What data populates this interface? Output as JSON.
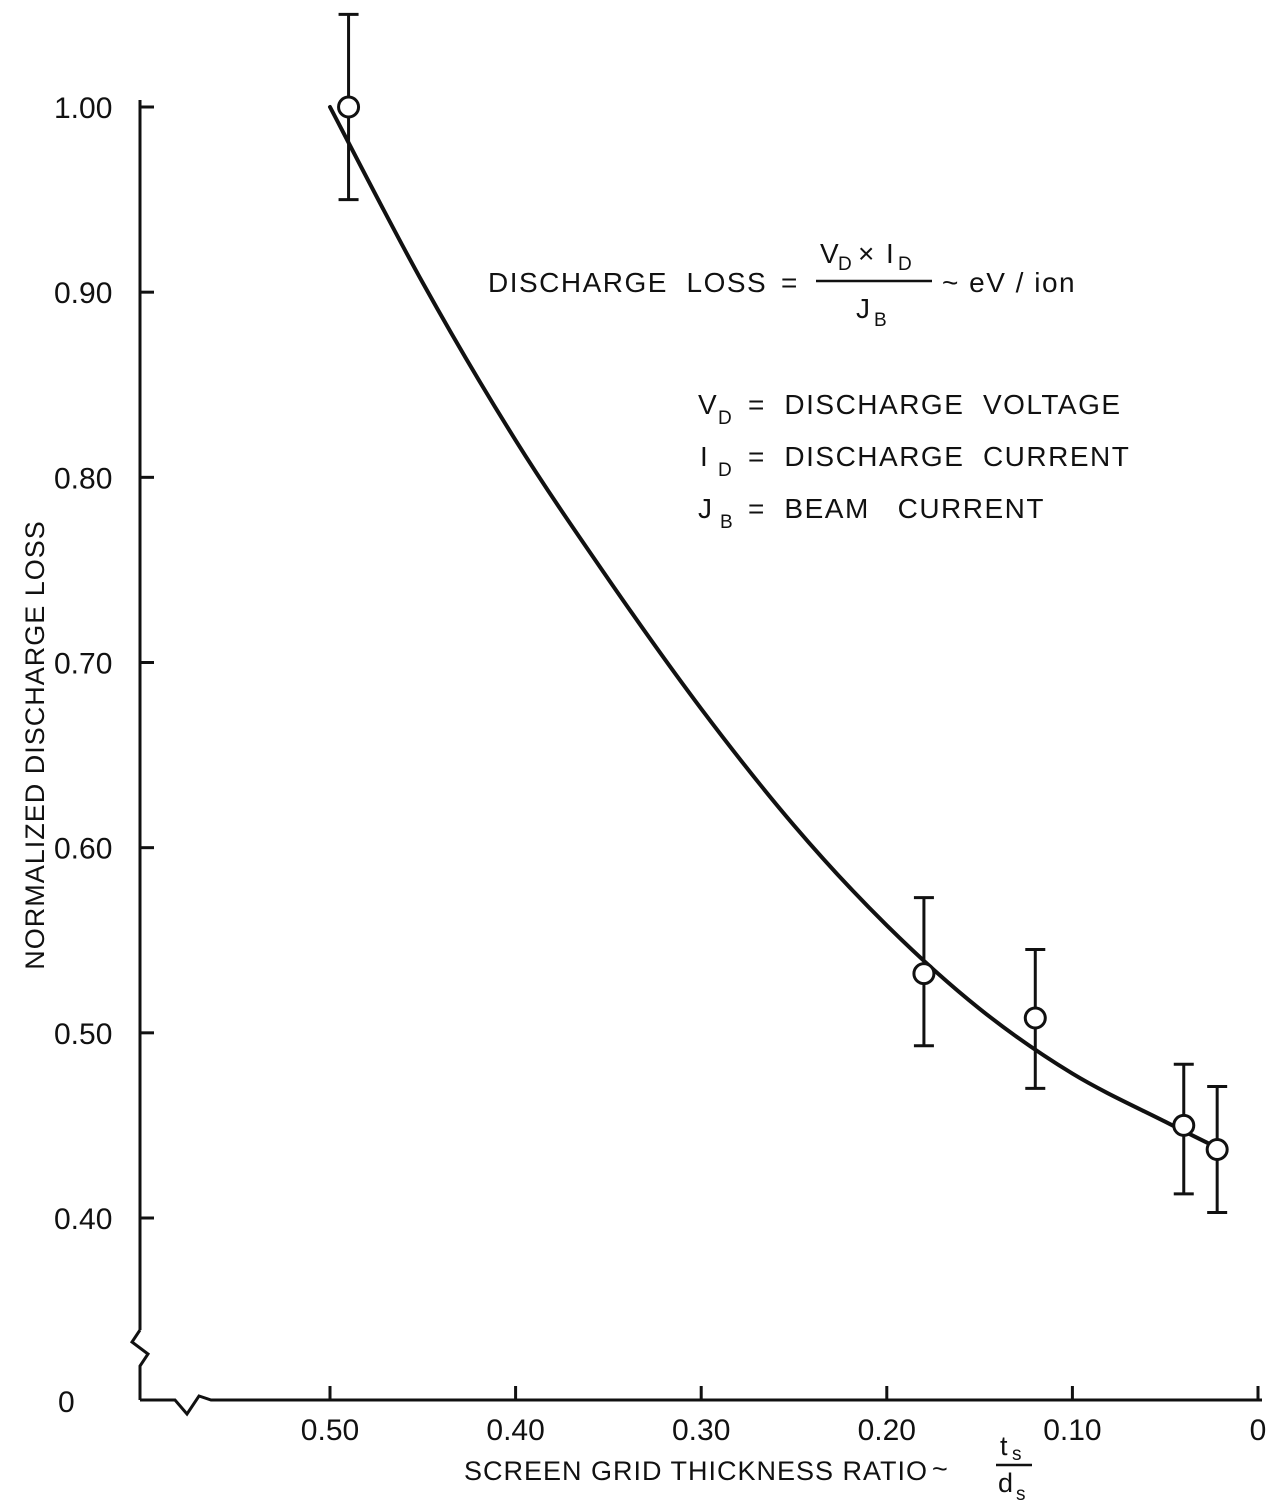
{
  "chart_data": {
    "type": "scatter",
    "title": "",
    "xlabel": "SCREEN GRID THICKNESS RATIO",
    "xlabel_fraction": {
      "sep": "~",
      "num": "t",
      "num_sub": "s",
      "den": "d",
      "den_sub": "s"
    },
    "ylabel": "NORMALIZED DISCHARGE LOSS",
    "xlim": [
      0.5,
      0
    ],
    "ylim": [
      0.4,
      1.0
    ],
    "x_reversed": true,
    "y_axis_break": true,
    "x_axis_break": true,
    "x_origin_label": "0",
    "y_origin_label": "0",
    "x_ticks": [
      {
        "value": 0.5,
        "label": "0.50"
      },
      {
        "value": 0.4,
        "label": "0.40"
      },
      {
        "value": 0.3,
        "label": "0.30"
      },
      {
        "value": 0.2,
        "label": "0.20"
      },
      {
        "value": 0.1,
        "label": "0.10"
      },
      {
        "value": 0.0,
        "label": "0"
      }
    ],
    "y_ticks": [
      {
        "value": 1.0,
        "label": "1.00"
      },
      {
        "value": 0.9,
        "label": "0.90"
      },
      {
        "value": 0.8,
        "label": "0.80"
      },
      {
        "value": 0.7,
        "label": "0.70"
      },
      {
        "value": 0.6,
        "label": "0.60"
      },
      {
        "value": 0.5,
        "label": "0.50"
      },
      {
        "value": 0.4,
        "label": "0.40"
      }
    ],
    "grid": false,
    "series": [
      {
        "marker": "open-circle",
        "points": [
          {
            "x": 0.49,
            "y": 1.0,
            "err_low": 0.95,
            "err_high": 1.05
          },
          {
            "x": 0.18,
            "y": 0.532,
            "err_low": 0.493,
            "err_high": 0.573
          },
          {
            "x": 0.12,
            "y": 0.508,
            "err_low": 0.47,
            "err_high": 0.545
          },
          {
            "x": 0.04,
            "y": 0.45,
            "err_low": 0.413,
            "err_high": 0.483
          },
          {
            "x": 0.022,
            "y": 0.437,
            "err_low": 0.403,
            "err_high": 0.471
          }
        ]
      }
    ],
    "fit_curve": [
      {
        "x": 0.5,
        "y": 1.0
      },
      {
        "x": 0.45,
        "y": 0.905
      },
      {
        "x": 0.4,
        "y": 0.82
      },
      {
        "x": 0.35,
        "y": 0.745
      },
      {
        "x": 0.3,
        "y": 0.675
      },
      {
        "x": 0.25,
        "y": 0.612
      },
      {
        "x": 0.2,
        "y": 0.558
      },
      {
        "x": 0.15,
        "y": 0.513
      },
      {
        "x": 0.1,
        "y": 0.478
      },
      {
        "x": 0.05,
        "y": 0.452
      },
      {
        "x": 0.02,
        "y": 0.437
      }
    ],
    "annotations": {
      "formula": {
        "lhs": "DISCHARGE  LOSS",
        "eq": "=",
        "num_v": "V",
        "num_v_sub": "D",
        "times": "×",
        "num_i": "I",
        "num_i_sub": "D",
        "den": "J",
        "den_sub": "B",
        "unit": "~ eV / ion"
      },
      "definitions": [
        {
          "sym": "V",
          "sub": "D",
          "text": "=  DISCHARGE  VOLTAGE"
        },
        {
          "sym": "I",
          "sub": "D",
          "text": "=  DISCHARGE  CURRENT"
        },
        {
          "sym": "J",
          "sub": "B",
          "text": "=  BEAM   CURRENT"
        }
      ]
    }
  }
}
